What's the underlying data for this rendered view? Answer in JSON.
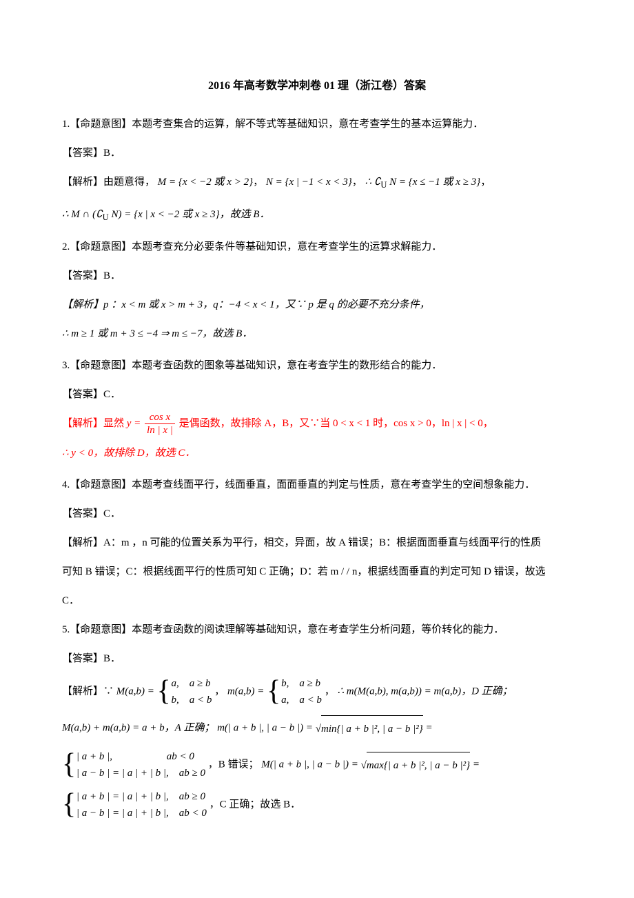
{
  "title": "2016 年高考数学冲刺卷 01 理（浙江卷）答案",
  "q1": {
    "intent": "1.【命题意图】本题考查集合的运算，解不等式等基础知识，意在考查学生的基本运算能力．",
    "answer": "【答案】B．",
    "analysis_pre": "【解析】由题意得，",
    "M_expr": "M = {x < −2 或 x > 2}",
    "N_expr": "N = {x | −1 < x < 3}",
    "so1": "∴ ∁",
    "so1_sub": "U",
    "so1_after": "N = {x ≤ −1 或 x ≥ 3}",
    "line2_pre": "∴ M ∩ (∁",
    "line2_sub": "U",
    "line2_after": "N) = {x | x < −2 或 x ≥ 3}，故选 B．"
  },
  "q2": {
    "intent": "2.【命题意图】本题考查充分必要条件等基础知识，意在考查学生的运算求解能力．",
    "answer": "【答案】B．",
    "analysis": "【解析】p ：x < m 或 x > m + 3，q：−4 < x < 1，又∵ p 是 q 的必要不充分条件，",
    "line2": "∴ m ≥ 1 或 m + 3 ≤ −4 ⇒ m ≤ −7，故选 B．"
  },
  "q3": {
    "intent": "3.【命题意图】本题考查函数的图象等基础知识，意在考查学生的数形结合的能力．",
    "answer": "【答案】C．",
    "analysis_pre": "【解析】显然 ",
    "y_eq": "y = ",
    "frac_num": "cos x",
    "frac_den": "ln | x |",
    "mid": " 是偶函数，故排除 A，B，又∵当 0 < x < 1 时，cos x > 0，ln | x | < 0，",
    "line2": "∴ y < 0，故排除 D，故选 C．"
  },
  "q4": {
    "intent": "4.【命题意图】本题考查线面平行，线面垂直，面面垂直的判定与性质，意在考查学生的空间想象能力．",
    "answer": "【答案】C．",
    "analysis1": "【解析】A：m ，n 可能的位置关系为平行，相交，异面，故 A 错误；B：根据面面垂直与线面平行的性质",
    "analysis2": "可知 B 错误；C：根据线面平行的性质可知 C 正确；D：若 m / / n，根据线面垂直的判定可知 D 错误，故选",
    "analysis3": "C．"
  },
  "q5": {
    "intent": "5.【命题意图】本题考查函数的阅读理解等基础知识，意在考查学生分析问题，等价转化的能力．",
    "answer": "【答案】B．",
    "analysis_pre": "【解析】∵ ",
    "M_def": "M(a,b) = ",
    "M_row1": "a,　a ≥ b",
    "M_row2": "b,　a < b",
    "m_def": "m(a,b) = ",
    "m_row1": "b,　a ≥ b",
    "m_row2": "a,　a < b",
    "d_correct": "∴ m(M(a,b), m(a,b)) = m(a,b)，D 正确；",
    "line2_a": "M(a,b) + m(a,b) = a + b，A 正确；",
    "line2_b_pre": "m(| a + b |, | a − b |) = ",
    "sqrt_b": "min{| a + b |², | a − b |²}",
    "eq_b": " =",
    "brace_b_row1": "| a + b |,　　　　　 ab < 0",
    "brace_b_row2": "| a − b | = | a | + | b |,　ab ≥ 0",
    "b_wrong": "，B 错误；",
    "c_pre": "M(| a + b |, | a − b |) = ",
    "sqrt_c": "max{| a + b |², | a − b |²}",
    "eq_c": " =",
    "brace_c_row1": "| a + b | = | a | + | b |,　ab ≥ 0",
    "brace_c_row2": "| a − b | = | a | + | b |,　ab < 0",
    "c_correct": "，C 正确；故选 B．"
  },
  "colors": {
    "text": "#000000",
    "highlight": "#ff0000",
    "bg": "#ffffff"
  },
  "typography": {
    "body_fontsize": 15,
    "title_fontsize": 16,
    "line_height": 2.4
  }
}
